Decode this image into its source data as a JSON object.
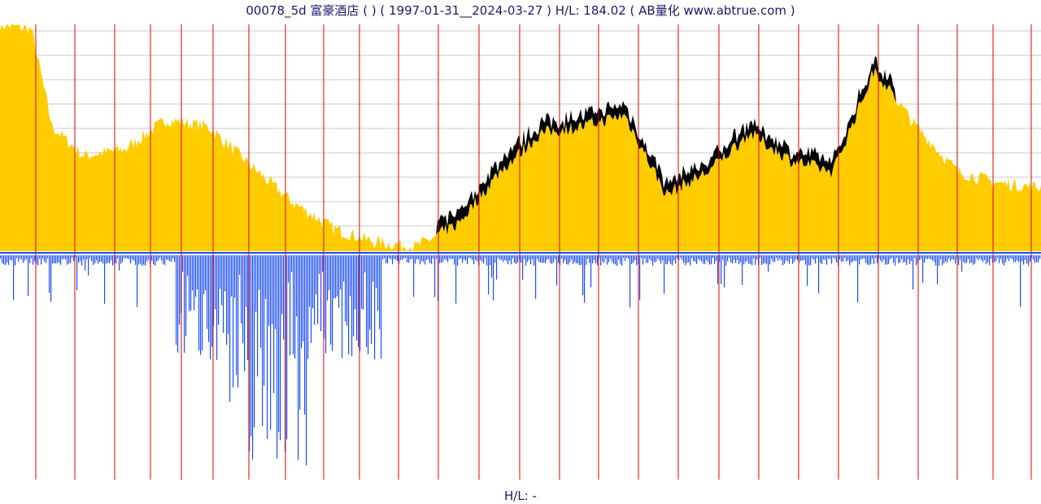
{
  "title": "00078_5d 富豪酒店 ( ) ( 1997-01-31__2024-03-27 ) H/L: 184.02 ( AB量化  www.abtrue.com )",
  "footer": "H/L: -",
  "colors": {
    "price_fill": "#ffcc00",
    "price_band": "#000000",
    "volume": "#1a4cff",
    "year_lines": "#dd0000",
    "grid": "#c8c8c8",
    "baseline": "#1a4cff"
  },
  "chart_data": {
    "type": "area",
    "series": [
      {
        "name": "",
        "x": [
          0,
          0.03,
          0.05,
          0.08,
          0.12,
          0.16,
          0.2,
          0.24,
          0.28,
          0.32,
          0.36,
          0.4,
          0.44,
          0.48,
          0.52,
          0.56,
          0.6,
          0.64,
          0.68,
          0.72,
          0.76,
          0.8,
          0.84,
          0.88,
          0.92,
          0.96,
          1.0
        ],
        "values": [
          1.0,
          0.98,
          0.55,
          0.42,
          0.45,
          0.58,
          0.55,
          0.38,
          0.22,
          0.1,
          0.04,
          0.02,
          0.12,
          0.35,
          0.52,
          0.55,
          0.6,
          0.25,
          0.35,
          0.52,
          0.4,
          0.35,
          0.8,
          0.55,
          0.35,
          0.3,
          0.28
        ]
      }
    ]
  }
}
